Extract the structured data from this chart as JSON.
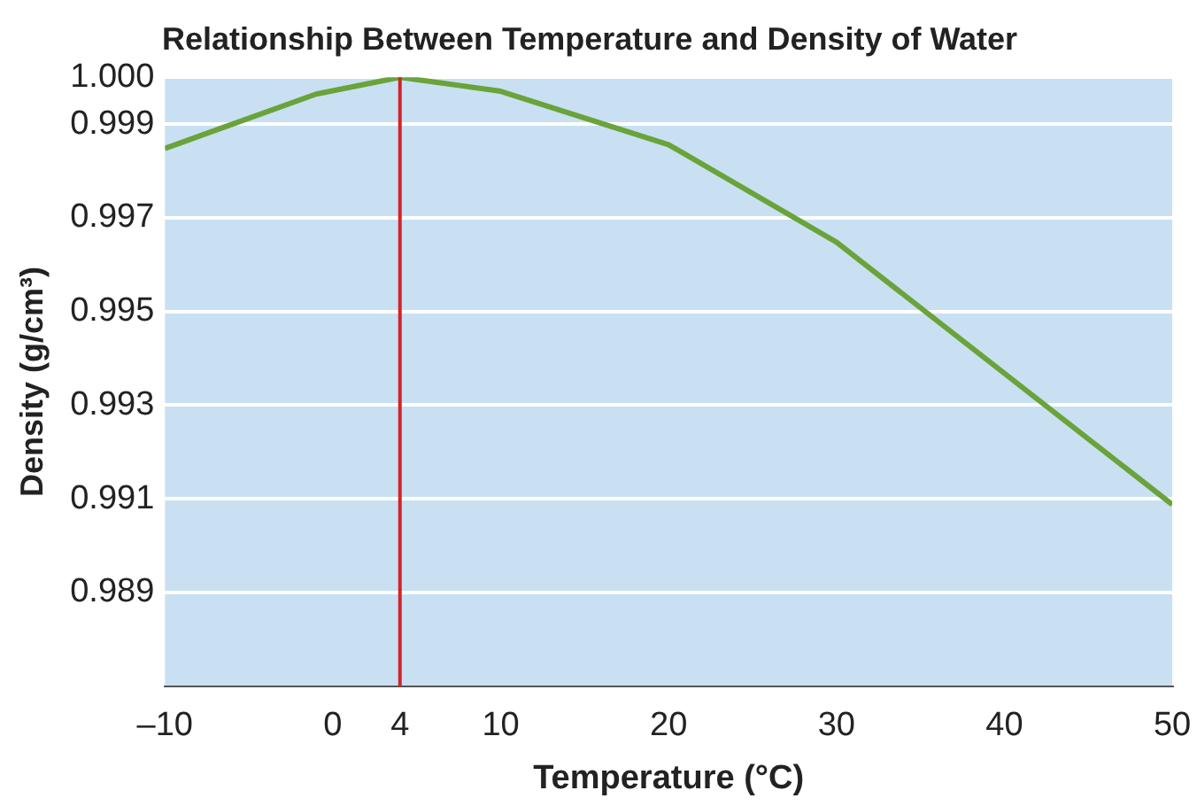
{
  "chart_data": {
    "type": "line",
    "title": "Relationship Between Temperature and Density of Water",
    "xlabel": "Temperature (°C)",
    "ylabel": "Density (g/cm³)",
    "x": [
      -10,
      -1,
      4,
      10,
      20,
      30,
      50
    ],
    "series": [
      {
        "color": "#6aa33a",
        "values": [
          0.99848,
          0.99964,
          1.0,
          0.9997,
          0.99856,
          0.99648,
          0.99088
        ]
      }
    ],
    "xlim": [
      -10,
      50
    ],
    "xticks": [
      {
        "value": -10,
        "label": "–10"
      },
      0,
      4,
      10,
      20,
      30,
      40,
      50
    ],
    "ylim": [
      0.987,
      1.0
    ],
    "yticks": [
      {
        "value": 1.0,
        "label": "1.000"
      },
      0.999,
      0.997,
      0.995,
      0.993,
      0.991,
      0.989
    ],
    "ref_lines": [
      {
        "axis": "x",
        "value": 4,
        "color": "#d2232a"
      }
    ],
    "grid": "y",
    "legend": false,
    "marker": "none",
    "line_style": "solid"
  }
}
